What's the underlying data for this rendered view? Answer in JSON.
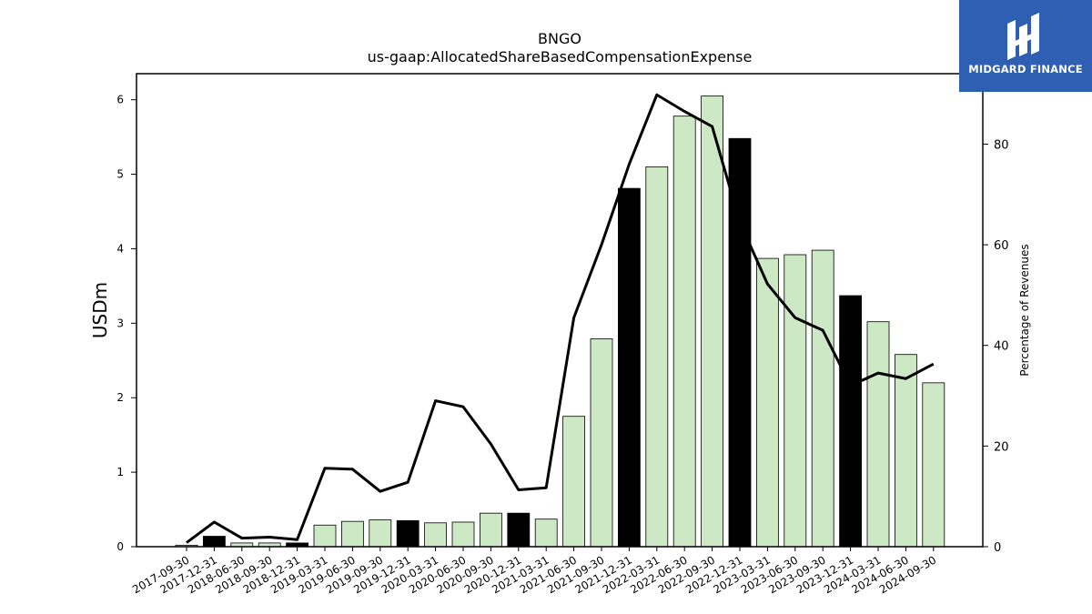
{
  "logo": {
    "text": "MIDGARD FINANCE",
    "background": "#2f5fb3"
  },
  "chart_data": {
    "type": "bar",
    "title": "BNGO",
    "subtitle": "us-gaap:AllocatedShareBasedCompensationExpense",
    "ylabel": "USDm",
    "y2label": "Percentage of Revenues",
    "ylim": [
      0,
      6.35
    ],
    "y2lim": [
      0,
      94
    ],
    "yticks": [
      0,
      1,
      2,
      3,
      4,
      5,
      6
    ],
    "y2ticks": [
      0,
      20,
      40,
      60,
      80
    ],
    "categories": [
      "2017-09-30",
      "2017-12-31",
      "2018-06-30",
      "2018-09-30",
      "2018-12-31",
      "2019-03-31",
      "2019-06-30",
      "2019-09-30",
      "2019-12-31",
      "2020-03-31",
      "2020-06-30",
      "2020-09-30",
      "2020-12-31",
      "2021-03-31",
      "2021-06-30",
      "2021-09-30",
      "2021-12-31",
      "2022-03-31",
      "2022-06-30",
      "2022-09-30",
      "2022-12-31",
      "2023-03-31",
      "2023-06-30",
      "2023-09-30",
      "2023-12-31",
      "2024-03-31",
      "2024-06-30",
      "2024-09-30"
    ],
    "series": [
      {
        "kind": "bar",
        "axis": "left",
        "values": [
          0.02,
          0.14,
          0.05,
          0.05,
          0.05,
          0.29,
          0.34,
          0.36,
          0.35,
          0.32,
          0.33,
          0.45,
          0.45,
          0.37,
          1.75,
          2.79,
          4.81,
          5.1,
          5.78,
          6.05,
          5.48,
          3.87,
          3.92,
          3.98,
          3.37,
          3.02,
          2.58,
          2.2
        ],
        "fiscal_year_end": [
          false,
          true,
          false,
          false,
          true,
          false,
          false,
          false,
          true,
          false,
          false,
          false,
          true,
          false,
          false,
          false,
          true,
          false,
          false,
          false,
          true,
          false,
          false,
          false,
          true,
          false,
          false,
          false
        ]
      },
      {
        "kind": "line",
        "axis": "right",
        "values": [
          0.8,
          4.9,
          1.7,
          1.9,
          1.4,
          15.6,
          15.4,
          11.0,
          12.8,
          29.0,
          27.8,
          20.4,
          11.3,
          11.7,
          45.5,
          60.0,
          76.0,
          89.8,
          86.5,
          83.5,
          64.5,
          52.2,
          45.5,
          43.0,
          32.0,
          34.5,
          33.4,
          36.3
        ]
      }
    ],
    "colors": {
      "bar": "#cce8c4",
      "bar_fiscal_year_end": "#000000",
      "line": "#000000"
    },
    "grid": false
  }
}
